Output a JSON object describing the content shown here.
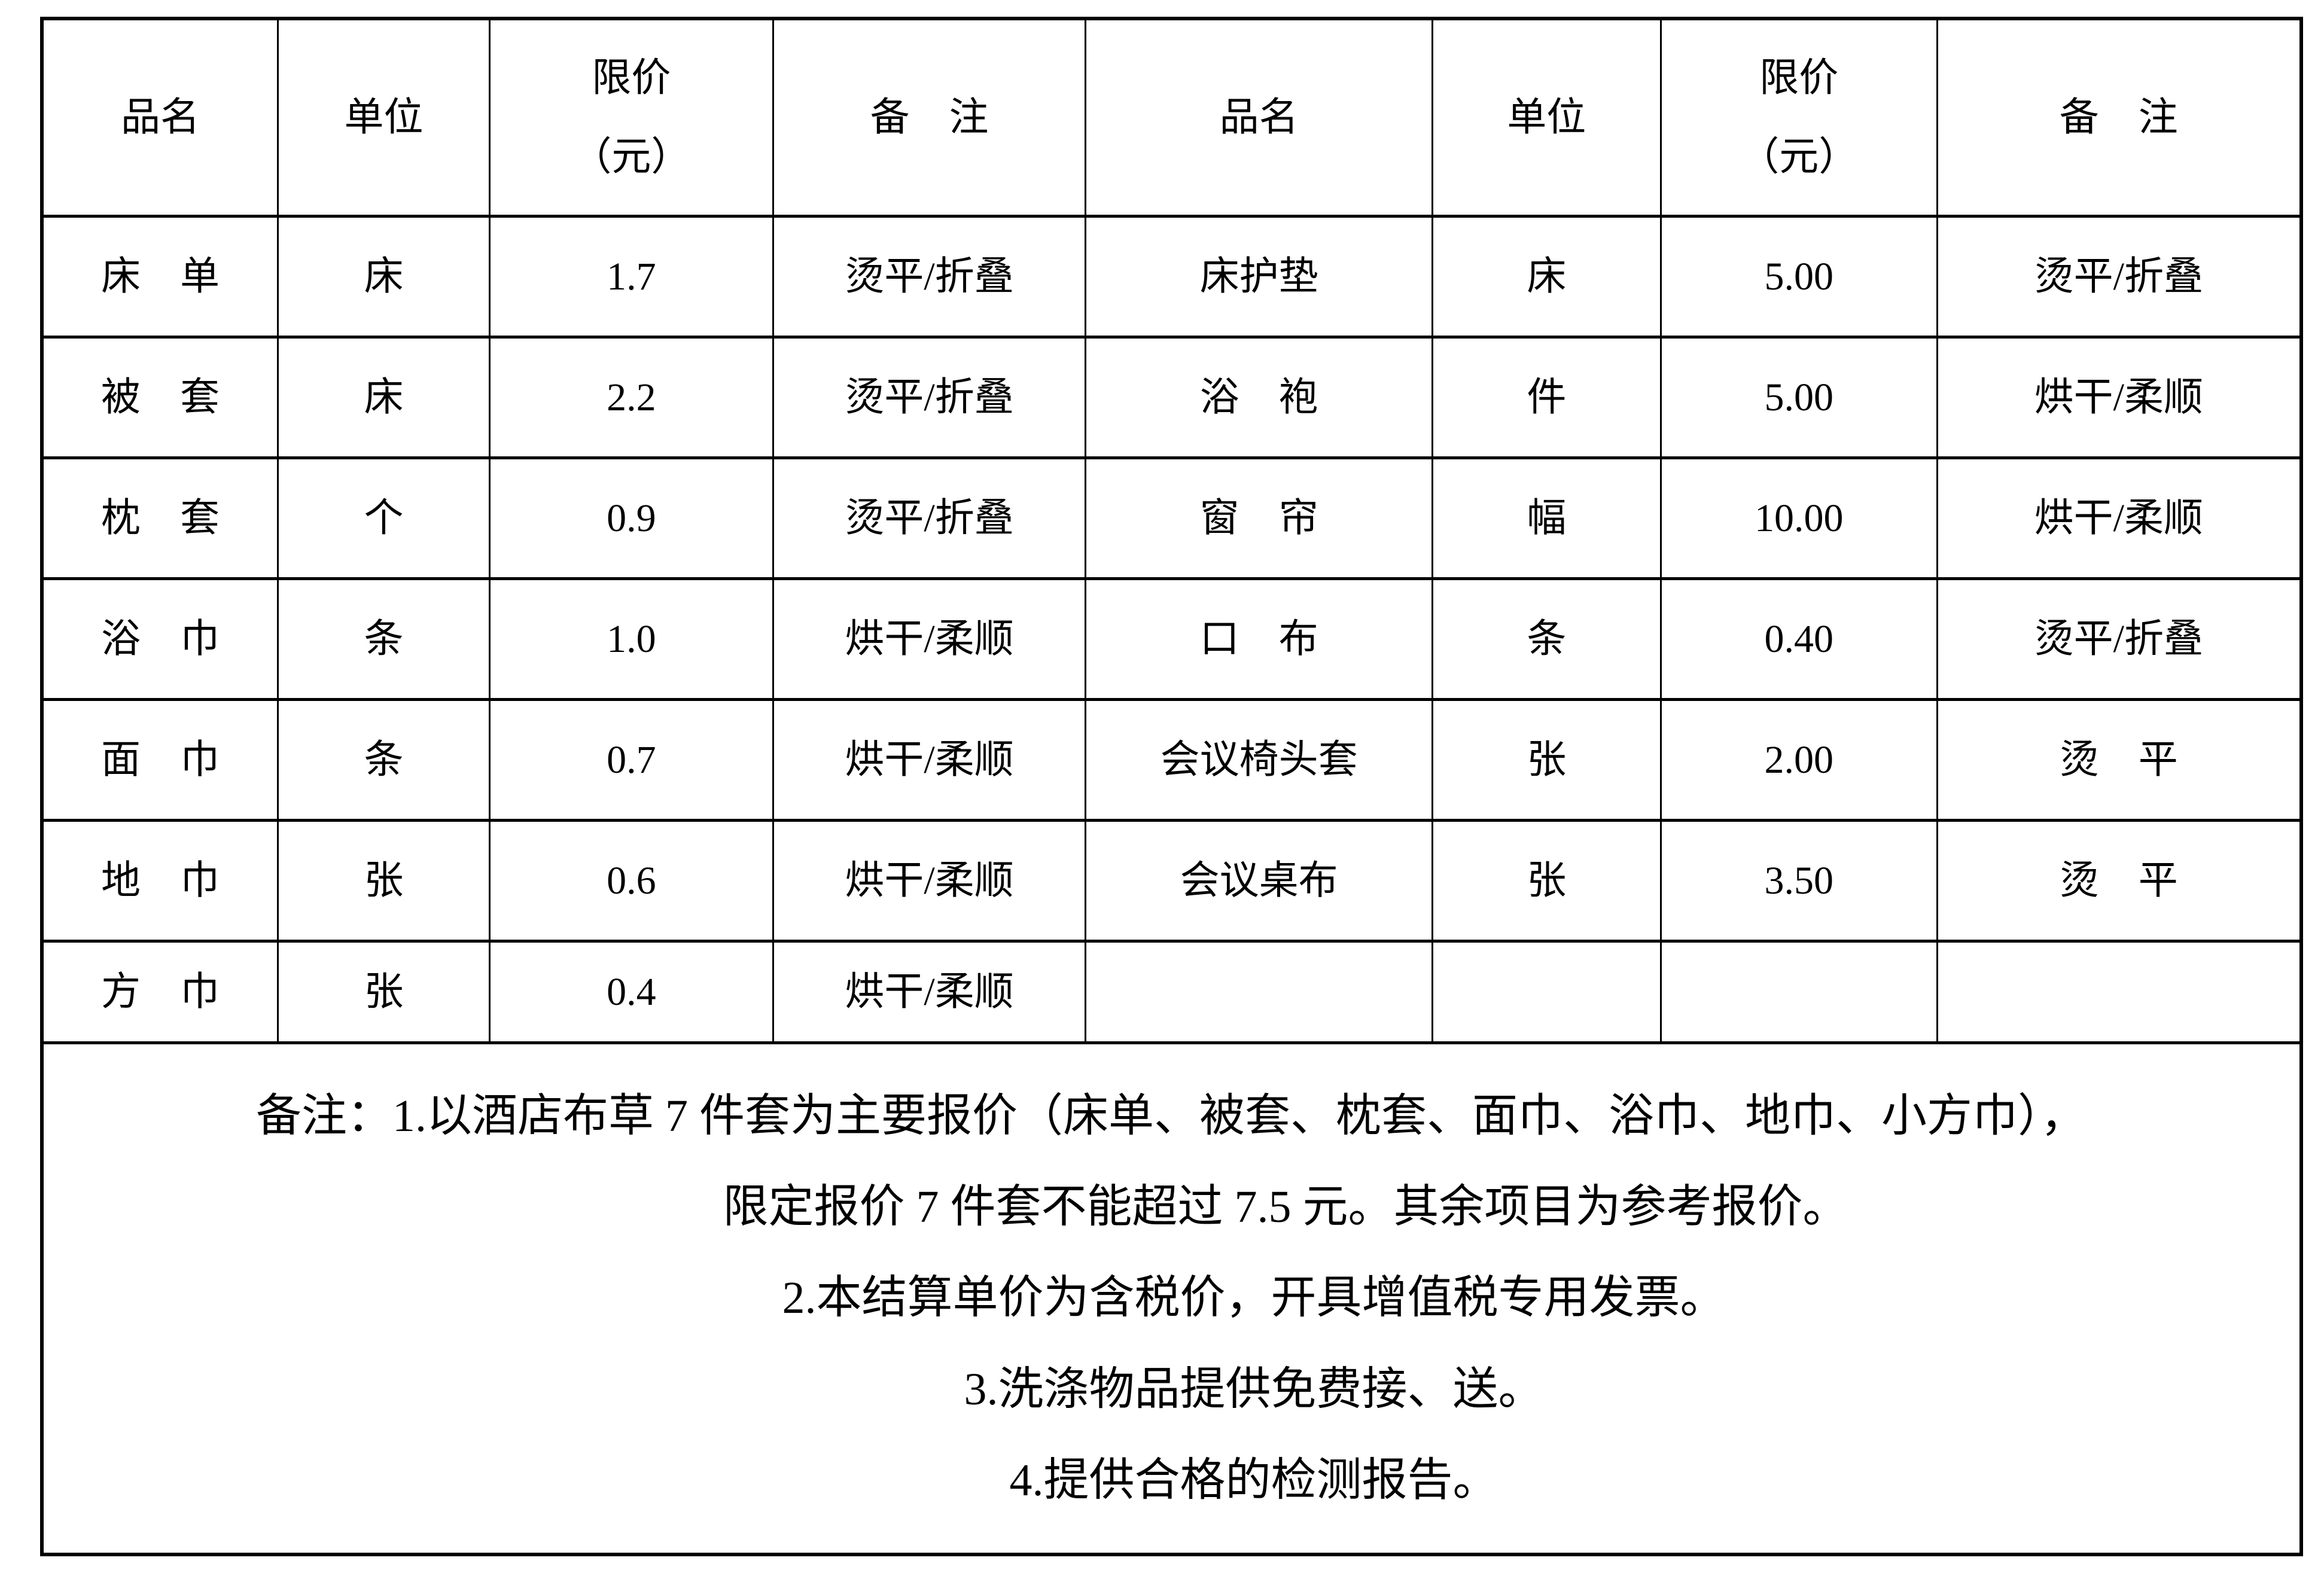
{
  "document": {
    "background": "#ffffff",
    "text_color": "#000000",
    "border_color": "#000000"
  },
  "table": {
    "header": {
      "c1": "品名",
      "c2": "单位",
      "c3a": "限价",
      "c3b": "（元）",
      "c4": "备　注",
      "c5": "品名",
      "c6": "单位",
      "c7a": "限价",
      "c7b": "（元）",
      "c8": "备　注"
    },
    "rows": [
      {
        "c1": "床　单",
        "c2": "床",
        "c3": "1.7",
        "c4": "烫平/折叠",
        "c5": "床护垫",
        "c6": "床",
        "c7": "5.00",
        "c8": "烫平/折叠"
      },
      {
        "c1": "被　套",
        "c2": "床",
        "c3": "2.2",
        "c4": "烫平/折叠",
        "c5": "浴　袍",
        "c6": "件",
        "c7": "5.00",
        "c8": "烘干/柔顺"
      },
      {
        "c1": "枕　套",
        "c2": "个",
        "c3": "0.9",
        "c4": "烫平/折叠",
        "c5": "窗　帘",
        "c6": "幅",
        "c7": "10.00",
        "c8": "烘干/柔顺"
      },
      {
        "c1": "浴　巾",
        "c2": "条",
        "c3": "1.0",
        "c4": "烘干/柔顺",
        "c5": "口　布",
        "c6": "条",
        "c7": "0.40",
        "c8": "烫平/折叠"
      },
      {
        "c1": "面　巾",
        "c2": "条",
        "c3": "0.7",
        "c4": "烘干/柔顺",
        "c5": "会议椅头套",
        "c6": "张",
        "c7": "2.00",
        "c8": "烫　平"
      },
      {
        "c1": "地　巾",
        "c2": "张",
        "c3": "0.6",
        "c4": "烘干/柔顺",
        "c5": "会议桌布",
        "c6": "张",
        "c7": "3.50",
        "c8": "烫　平"
      },
      {
        "c1": "方　巾",
        "c2": "张",
        "c3": "0.4",
        "c4": "烘干/柔顺",
        "c5": "",
        "c6": "",
        "c7": "",
        "c8": ""
      }
    ],
    "notes": [
      "备注：1.以酒店布草 7 件套为主要报价（床单、被套、枕套、面巾、浴巾、地巾、小方巾），",
      "限定报价 7 件套不能超过 7.5 元。其余项目为参考报价。",
      "2.本结算单价为含税价，开具增值税专用发票。",
      "3.洗涤物品提供免费接、送。",
      "4.提供合格的检测报告。"
    ]
  }
}
